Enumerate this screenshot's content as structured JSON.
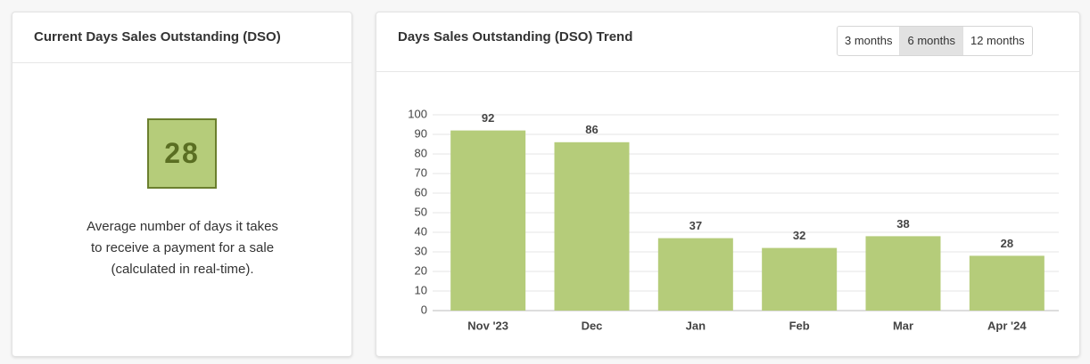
{
  "kpi_card": {
    "title": "Current Days Sales Outstanding (DSO)",
    "value": "28",
    "description": "Average number of days it takes to receive a payment for a sale (calculated in real-time)."
  },
  "range_buttons": {
    "options": [
      "3 months",
      "6 months",
      "12 months"
    ],
    "selected": "6 months"
  },
  "chart_data": {
    "type": "bar",
    "title": "Days Sales Outstanding (DSO) Trend",
    "categories": [
      "Nov '23",
      "Dec",
      "Jan",
      "Feb",
      "Mar",
      "Apr '24"
    ],
    "values": [
      92,
      86,
      37,
      32,
      38,
      28
    ],
    "color": "#b5cc7a",
    "ylim": [
      0,
      100
    ],
    "yticks": [
      0,
      10,
      20,
      30,
      40,
      50,
      60,
      70,
      80,
      90,
      100
    ],
    "grid": true
  }
}
